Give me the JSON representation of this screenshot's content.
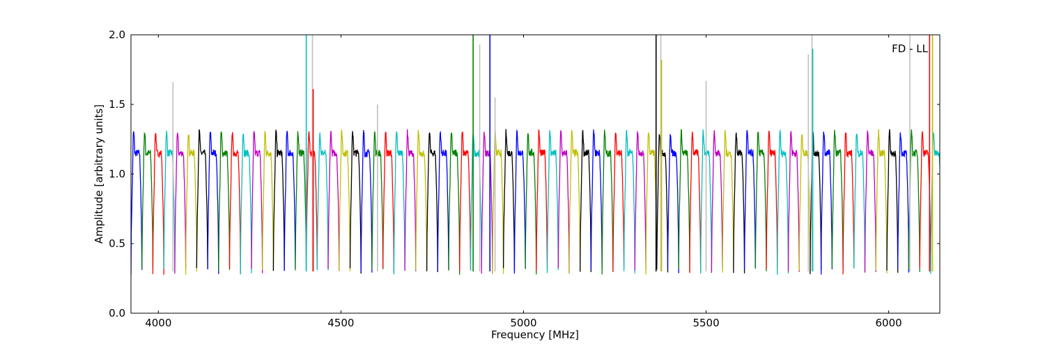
{
  "chart_data": {
    "type": "line",
    "title": "",
    "annotation": "FD - LL",
    "xlabel": "Frequency [MHz]",
    "ylabel": "Amplitude [arbitrary units]",
    "xlim": [
      3925,
      6140
    ],
    "ylim": [
      0,
      2.0
    ],
    "x_ticks": [
      4000,
      4500,
      5000,
      5500,
      6000
    ],
    "y_ticks": [
      0.0,
      0.5,
      1.0,
      1.5,
      2.0
    ],
    "x_tick_labels": [
      "4000",
      "4500",
      "5000",
      "5500",
      "6000"
    ],
    "y_tick_labels": [
      "0.0",
      "0.5",
      "1.0",
      "1.5",
      "2.0"
    ],
    "grid": false,
    "legend": "none",
    "series_colors": [
      "#0000ff",
      "#008000",
      "#ff0000",
      "#00bfbf",
      "#bf00bf",
      "#bfbf00",
      "#000000"
    ],
    "raw_color": "#bfbfbf",
    "channel_count": 74,
    "channel_width": 30,
    "start_frequency": 3925,
    "channel_profile": {
      "edge_low": 0.3,
      "plateau": 1.15,
      "peak": 1.3
    },
    "spikes": [
      {
        "x": 4040,
        "y": 1.66,
        "raw": true
      },
      {
        "x": 4405,
        "y": 2.0,
        "raw": false
      },
      {
        "x": 4422,
        "y": 2.0,
        "raw": true
      },
      {
        "x": 4424,
        "y": 1.61,
        "raw": false
      },
      {
        "x": 4600,
        "y": 1.5,
        "raw": true
      },
      {
        "x": 4862,
        "y": 2.0,
        "raw": false
      },
      {
        "x": 4880,
        "y": 1.93,
        "raw": true
      },
      {
        "x": 4908,
        "y": 2.0,
        "raw": false
      },
      {
        "x": 4922,
        "y": 1.55,
        "raw": true
      },
      {
        "x": 5363,
        "y": 2.0,
        "raw": false
      },
      {
        "x": 5376,
        "y": 2.0,
        "raw": true
      },
      {
        "x": 5378,
        "y": 1.82,
        "raw": false
      },
      {
        "x": 5500,
        "y": 1.67,
        "raw": true
      },
      {
        "x": 5780,
        "y": 1.86,
        "raw": true
      },
      {
        "x": 5790,
        "y": 2.0,
        "raw": true
      },
      {
        "x": 5792,
        "y": 1.9,
        "raw": false
      },
      {
        "x": 6058,
        "y": 2.0,
        "raw": true
      },
      {
        "x": 6112,
        "y": 2.0,
        "raw": false
      },
      {
        "x": 6120,
        "y": 2.0,
        "raw": false
      }
    ]
  }
}
